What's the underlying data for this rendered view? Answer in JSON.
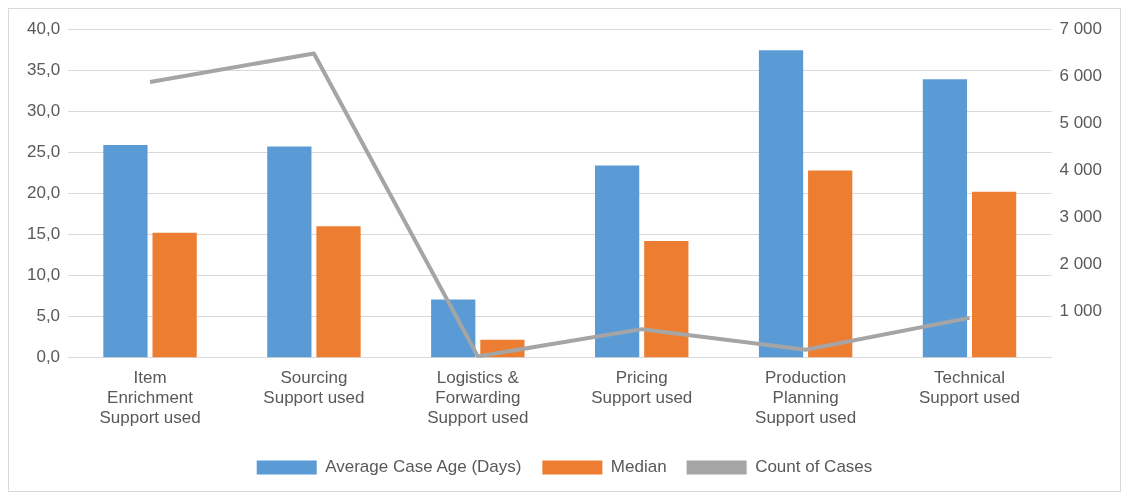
{
  "chart_data": {
    "type": "bar",
    "categories": [
      "Item Enrichment Support used",
      "Sourcing Support used",
      "Logistics & Forwarding Support used",
      "Pricing Support used",
      "Production Planning Support used",
      "Technical Support used"
    ],
    "series": [
      {
        "name": "Average Case Age (Days)",
        "color": "#5b9bd5",
        "values": [
          25.9,
          25.7,
          7.1,
          23.4,
          37.4,
          33.9
        ]
      },
      {
        "name": "Median",
        "color": "#ed7d31",
        "values": [
          15.2,
          16.0,
          2.2,
          14.2,
          22.8,
          20.2
        ]
      },
      {
        "name": "Count of Cases",
        "type": "line",
        "axis": "y2",
        "color": "#a5a5a5",
        "values": [
          5870,
          6480,
          30,
          610,
          170,
          850
        ]
      }
    ],
    "ylim": [
      0,
      40
    ],
    "yticks": [
      {
        "value": 0,
        "label": "0,0"
      },
      {
        "value": 5,
        "label": "5,0"
      },
      {
        "value": 10,
        "label": "10,0"
      },
      {
        "value": 15,
        "label": "15,0"
      },
      {
        "value": 20,
        "label": "20,0"
      },
      {
        "value": 25,
        "label": "25,0"
      },
      {
        "value": 30,
        "label": "30,0"
      },
      {
        "value": 35,
        "label": "35,0"
      },
      {
        "value": 40,
        "label": "40,0"
      }
    ],
    "y2lim": [
      0,
      7000
    ],
    "y2ticks": [
      {
        "value": 1000,
        "label": "1 000"
      },
      {
        "value": 2000,
        "label": "2 000"
      },
      {
        "value": 3000,
        "label": "3 000"
      },
      {
        "value": 4000,
        "label": "4 000"
      },
      {
        "value": 5000,
        "label": "5 000"
      },
      {
        "value": 6000,
        "label": "6 000"
      },
      {
        "value": 7000,
        "label": "7 000"
      }
    ],
    "grid": "y",
    "legend": "bottom",
    "marker": "none"
  }
}
